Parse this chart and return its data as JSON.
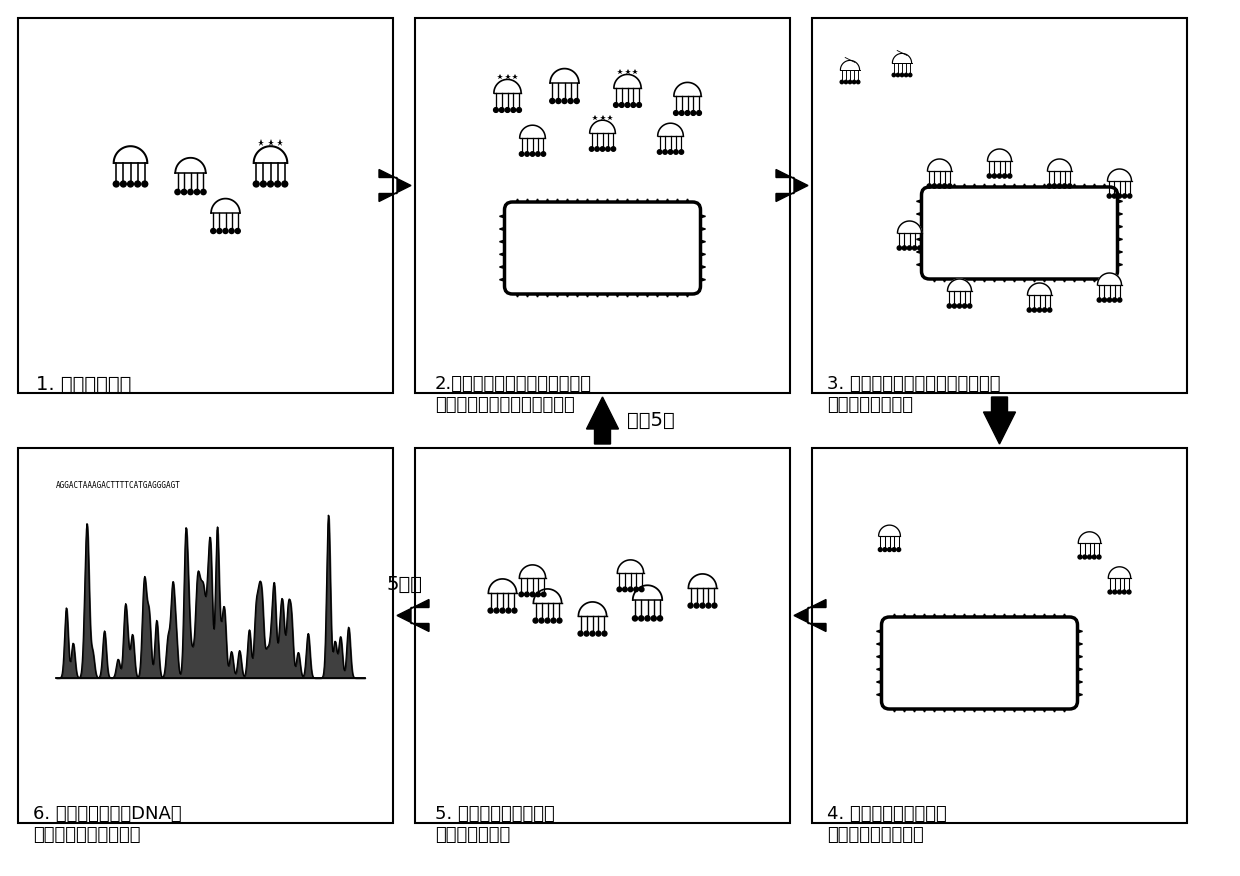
{
  "bg_color": "#ffffff",
  "panels": [
    {
      "id": 1,
      "col": 0,
      "row": 0,
      "label": "1. 随机七肽文库"
    },
    {
      "id": 2,
      "col": 1,
      "row": 0,
      "label": "2.　由基因文库表达获得噬菌体\n文库，并与目标细菌孵育结合"
    },
    {
      "id": 3,
      "col": 2,
      "row": 0,
      "label": "3. 经过洗洤后，淘汰未与目标细菌\n表面结合的噬菌体"
    },
    {
      "id": 4,
      "col": 2,
      "row": 1,
      "label": "4. 将与目标细菌表面结\n合的噬菌体洗脱下来"
    },
    {
      "id": 5,
      "col": 1,
      "row": 1,
      "label": "5. 将洗脱后的噬菌体在\n大肠杆菌中扩增"
    },
    {
      "id": 6,
      "col": 0,
      "row": 1,
      "label": "6. 挑取噬菌体进行DNA测\n序，转换为氨基酸序列"
    }
  ],
  "repeat_text": "重复5次",
  "after5_text": "5次后",
  "dna_seq": "AGGACTAAAGACTTTTCATGAGGGAGT"
}
